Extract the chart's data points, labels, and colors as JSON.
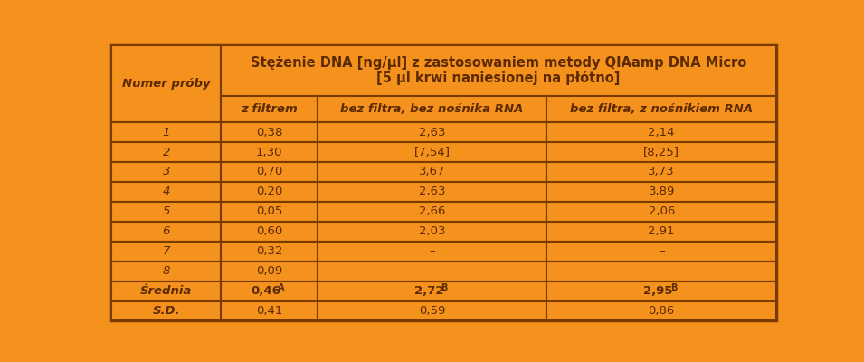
{
  "title_line1": "Stężenie DNA [ng/µl] z zastosowaniem metody QIAamp DNA Micro",
  "title_line2": "[5 µl krwi naniesionej na płótno]",
  "col_headers": [
    "z filtrem",
    "bez filtra, bez nośnika RNA",
    "bez filtra, z nośnikiem RNA"
  ],
  "row_header": "Numer próby",
  "rows": [
    [
      "1",
      "0,38",
      "2,63",
      "2,14"
    ],
    [
      "2",
      "1,30",
      "[7,54]",
      "[8,25]"
    ],
    [
      "3",
      "0,70",
      "3,67",
      "3,73"
    ],
    [
      "4",
      "0,20",
      "2,63",
      "3,89"
    ],
    [
      "5",
      "0,05",
      "2,66",
      "2,06"
    ],
    [
      "6",
      "0,60",
      "2,03",
      "2,91"
    ],
    [
      "7",
      "0,32",
      "–",
      "–"
    ],
    [
      "8",
      "0,09",
      "–",
      "–"
    ]
  ],
  "sd_row": [
    "S.D.",
    "0,41",
    "0,59",
    "0,86"
  ],
  "bg_color": "#F5921E",
  "border_color": "#7B3A00",
  "text_color": "#5C2A00"
}
